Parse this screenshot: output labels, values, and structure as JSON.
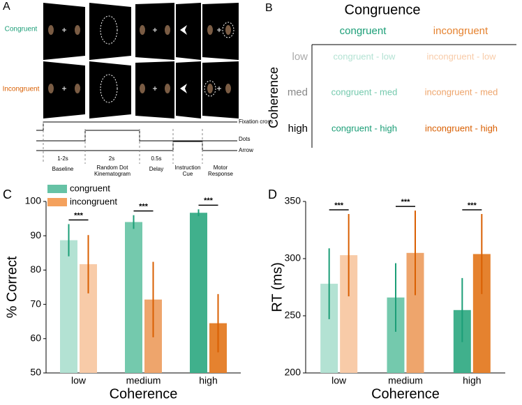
{
  "panel_a": {
    "label": "A",
    "rows": [
      "Congruent",
      "Incongruent"
    ],
    "signals": [
      "Fixation cross",
      "Dots",
      "Arrow"
    ],
    "durations": [
      "1-2s",
      "2s",
      "0.5s"
    ],
    "phases": [
      "Baseline",
      "Random Dot Kinematogram",
      "Delay",
      "Instruction Cue",
      "Motor Response"
    ]
  },
  "panel_b": {
    "label": "B",
    "title": "Congruence",
    "columns": [
      "congruent",
      "incongruent"
    ],
    "row_title": "Coherence",
    "rows": [
      "low",
      "med",
      "high"
    ],
    "cells": [
      [
        "congruent - low",
        "incongruent - low"
      ],
      [
        "congruent - med",
        "incongruent - med"
      ],
      [
        "congruent - high",
        "incongruent - high"
      ]
    ]
  },
  "chart_data": [
    {
      "type": "bar",
      "panel_label": "C",
      "ylabel": "% Correct",
      "xlabel": "Coherence",
      "categories": [
        "low",
        "medium",
        "high"
      ],
      "series": [
        {
          "name": "congruent",
          "color": "#66c2a5",
          "colors": [
            "#b3e2d3",
            "#74c9ad",
            "#40b08c"
          ],
          "error_color": "#1b9e77",
          "values": [
            88.7,
            94.0,
            96.7
          ],
          "errors": [
            4.7,
            2.0,
            1.0
          ]
        },
        {
          "name": "incongruent",
          "color": "#f4a15d",
          "colors": [
            "#f8cba8",
            "#eea56c",
            "#e5822f"
          ],
          "error_color": "#d95f02",
          "values": [
            81.7,
            71.4,
            64.5
          ],
          "errors": [
            8.5,
            11.0,
            8.5
          ]
        }
      ],
      "ylim": [
        50,
        100
      ],
      "yticks": [
        50,
        60,
        70,
        80,
        90,
        100
      ],
      "annotations": [
        "***",
        "***",
        "***"
      ],
      "legend": "upper left"
    },
    {
      "type": "bar",
      "panel_label": "D",
      "ylabel": "RT (ms)",
      "xlabel": "Coherence",
      "categories": [
        "low",
        "medium",
        "high"
      ],
      "series": [
        {
          "name": "congruent",
          "color": "#66c2a5",
          "colors": [
            "#b3e2d3",
            "#74c9ad",
            "#40b08c"
          ],
          "error_color": "#1b9e77",
          "values": [
            278,
            266,
            255
          ],
          "errors": [
            31,
            30,
            28
          ]
        },
        {
          "name": "incongruent",
          "color": "#f4a15d",
          "colors": [
            "#f8cba8",
            "#eea56c",
            "#e5822f"
          ],
          "error_color": "#d95f02",
          "values": [
            303,
            305,
            304
          ],
          "errors": [
            36,
            37,
            35
          ]
        }
      ],
      "ylim": [
        200,
        350
      ],
      "yticks": [
        200,
        250,
        300,
        350
      ],
      "annotations": [
        "***",
        "***",
        "***"
      ]
    }
  ]
}
